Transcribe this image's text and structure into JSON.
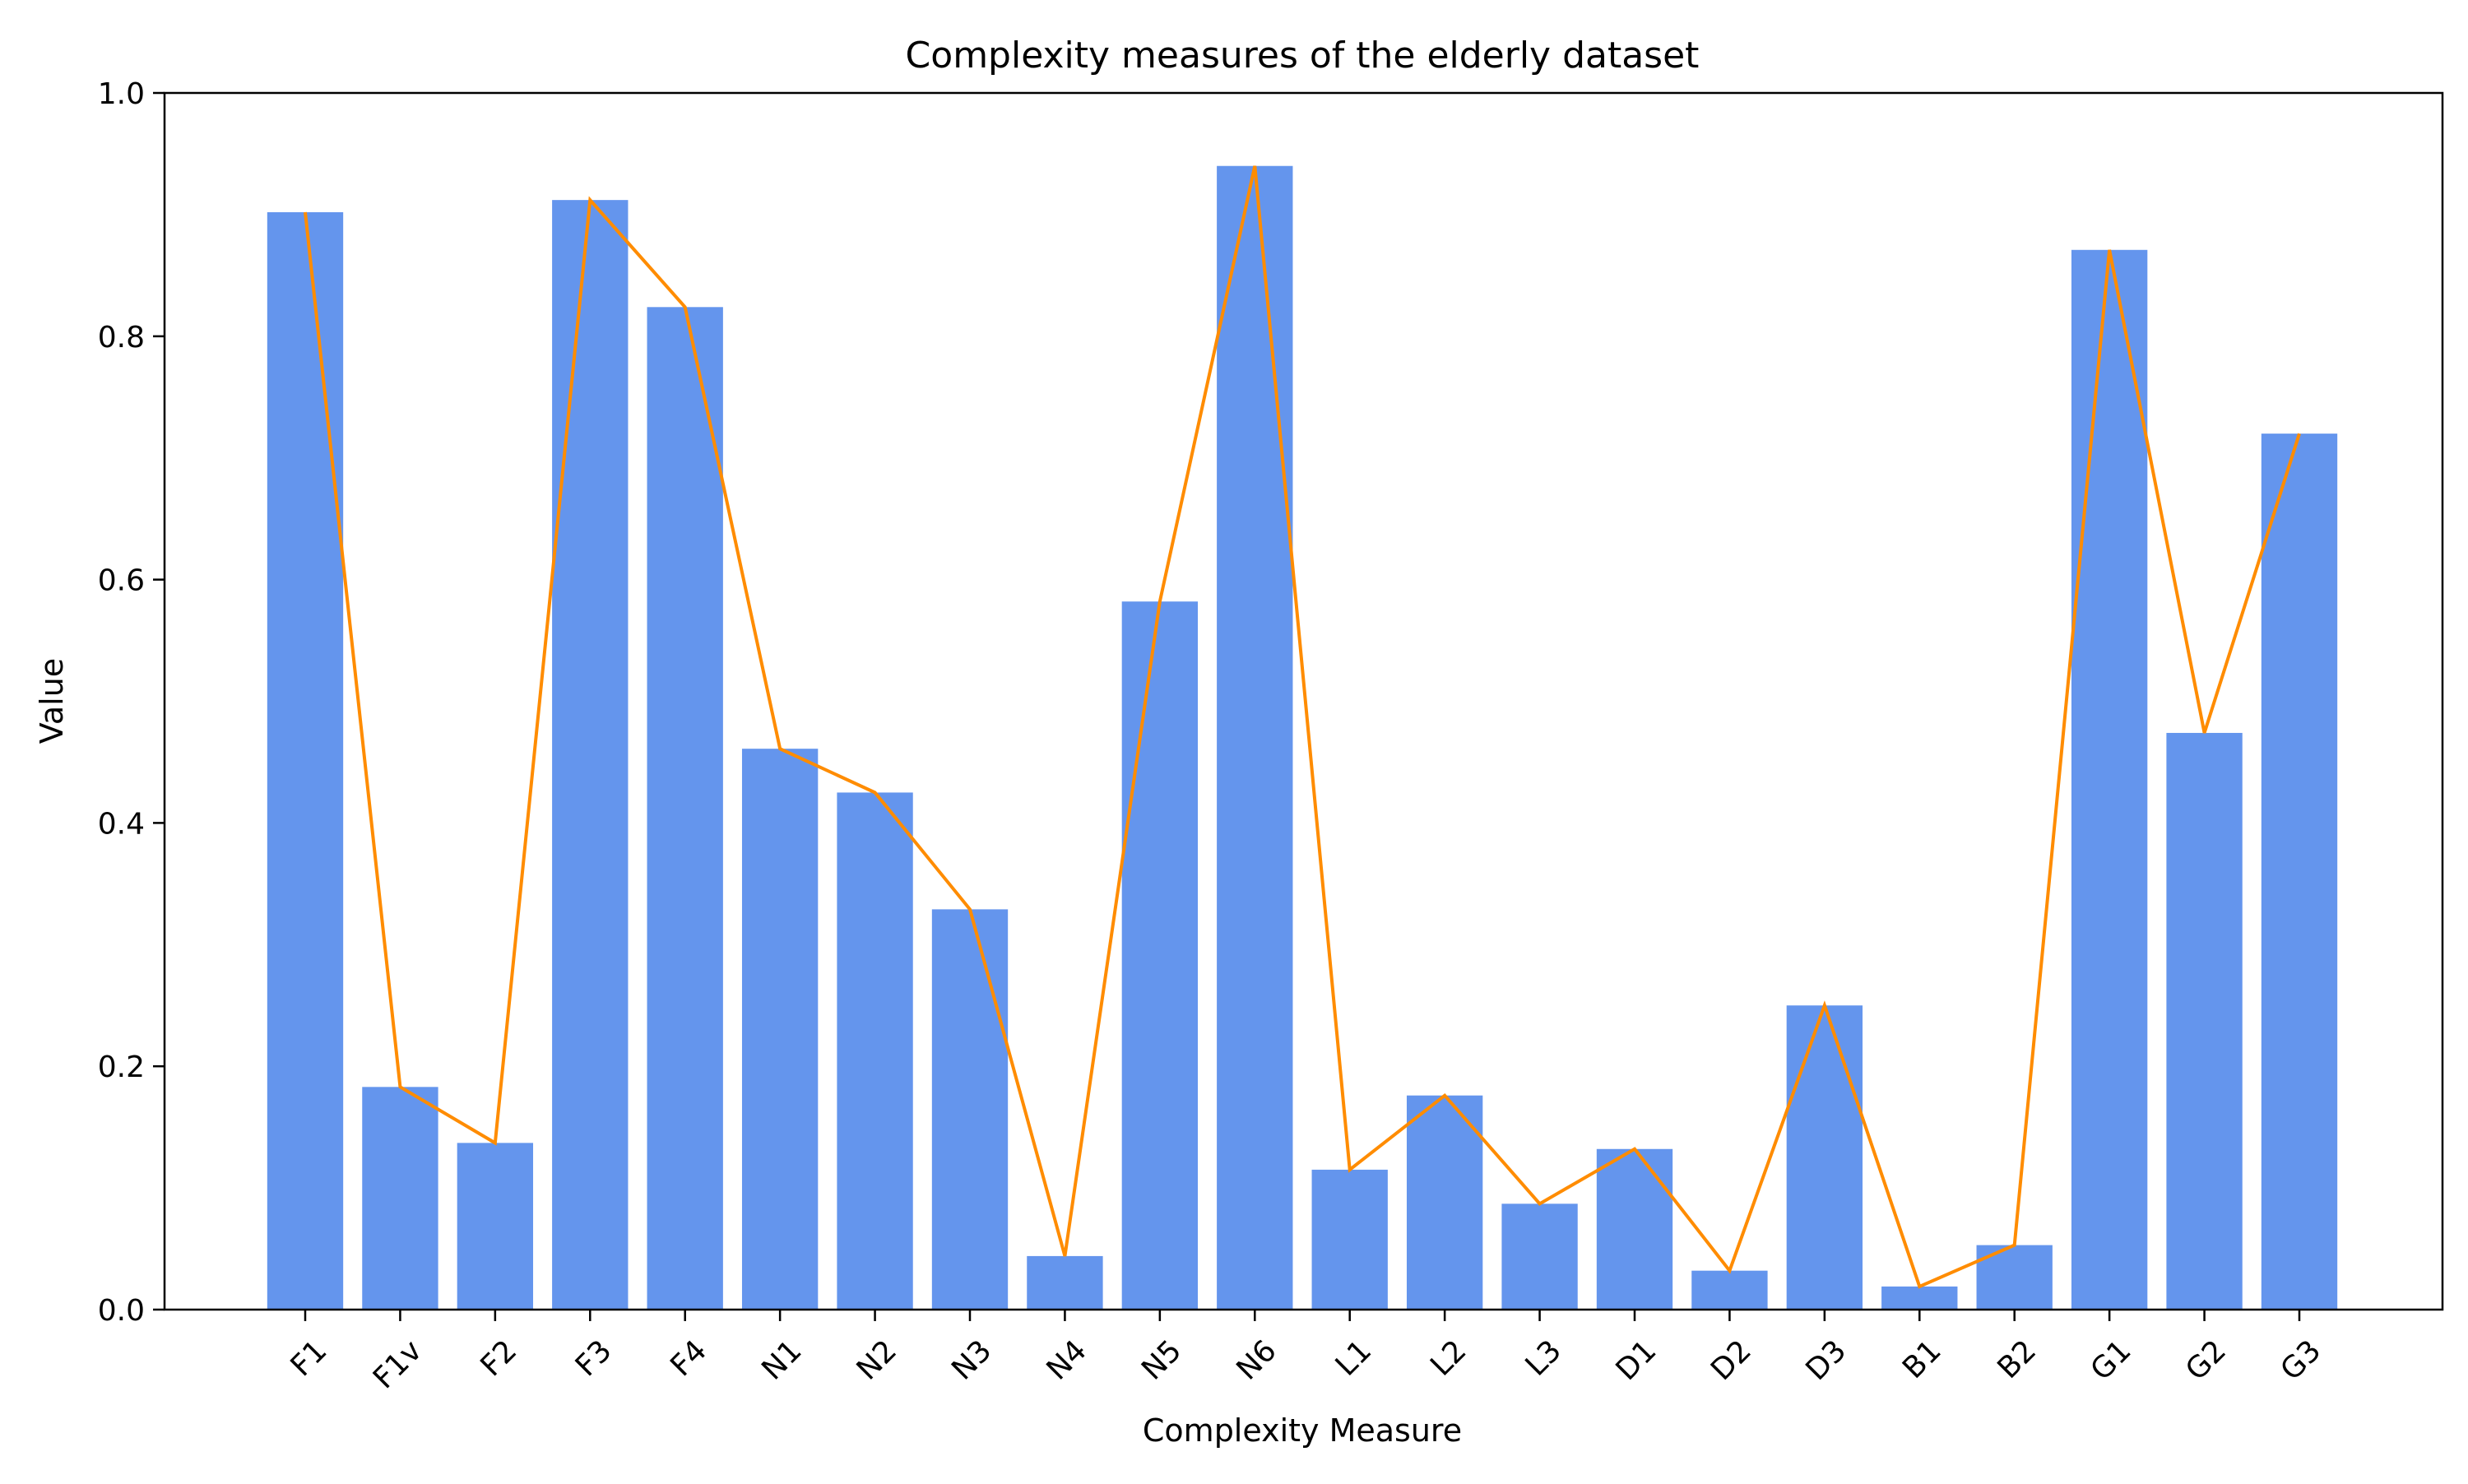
{
  "chart_data": {
    "type": "bar",
    "title": "Complexity measures of the elderly dataset",
    "xlabel": "Complexity Measure",
    "ylabel": "Value",
    "ylim": [
      0,
      1.0
    ],
    "yticks": [
      "0.0",
      "0.2",
      "0.4",
      "0.6",
      "0.8",
      "1.0"
    ],
    "ytick_values": [
      0.0,
      0.2,
      0.4,
      0.6,
      0.8,
      1.0
    ],
    "categories": [
      "F1",
      "F1v",
      "F2",
      "F3",
      "F4",
      "N1",
      "N2",
      "N3",
      "N4",
      "N5",
      "N6",
      "L1",
      "L2",
      "L3",
      "D1",
      "D2",
      "D3",
      "B1",
      "B2",
      "G1",
      "G2",
      "G3"
    ],
    "values": [
      0.902,
      0.183,
      0.137,
      0.912,
      0.824,
      0.461,
      0.425,
      0.329,
      0.044,
      0.582,
      0.94,
      0.115,
      0.176,
      0.087,
      0.132,
      0.032,
      0.25,
      0.019,
      0.053,
      0.871,
      0.474,
      0.72
    ],
    "grid": false,
    "tick_label_rotation": "45 degrees",
    "colors": {
      "bar": "#6495ED",
      "line": "#FF8C00",
      "axis": "#000000",
      "background": "#ffffff"
    }
  }
}
